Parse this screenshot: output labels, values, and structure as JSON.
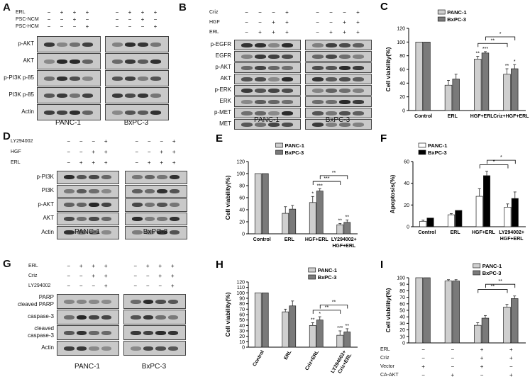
{
  "panels": {
    "A": {
      "label": "A",
      "conditions": [
        {
          "name": "ERL",
          "signs": [
            "−",
            "+",
            "+",
            "+",
            "−",
            "+",
            "+",
            "+"
          ]
        },
        {
          "name": "PSC-NCM",
          "signs": [
            "−",
            "−",
            "+",
            "−",
            "−",
            "−",
            "+",
            "−"
          ]
        },
        {
          "name": "PSC-HCM",
          "signs": [
            "−",
            "−",
            "−",
            "+",
            "−",
            "−",
            "−",
            "+"
          ]
        }
      ],
      "rows": [
        "p-AKT",
        "AKT",
        "p-PI3K p-85",
        "PI3K p-85",
        "Actin"
      ],
      "cells": [
        "PANC-1",
        "BxPC-3"
      ]
    },
    "B": {
      "label": "B",
      "conditions": [
        {
          "name": "Criz",
          "signs": [
            "−",
            "−",
            "−",
            "+",
            "−",
            "−",
            "−",
            "+"
          ]
        },
        {
          "name": "HGF",
          "signs": [
            "−",
            "−",
            "+",
            "+",
            "−",
            "−",
            "+",
            "+"
          ]
        },
        {
          "name": "ERL",
          "signs": [
            "−",
            "+",
            "+",
            "+",
            "−",
            "+",
            "+",
            "+"
          ]
        }
      ],
      "rows": [
        "p-EGFR",
        "EGFR",
        "p-AKT",
        "AKT",
        "p-ERK",
        "ERK",
        "p-MET",
        "MET"
      ],
      "cells": [
        "PANC-1",
        "BxPC-3"
      ]
    },
    "D": {
      "label": "D",
      "conditions": [
        {
          "name": "LY294002",
          "signs": [
            "−",
            "−",
            "−",
            "+",
            "−",
            "−",
            "−",
            "+"
          ]
        },
        {
          "name": "HGF",
          "signs": [
            "−",
            "−",
            "+",
            "+",
            "−",
            "−",
            "+",
            "+"
          ]
        },
        {
          "name": "ERL",
          "signs": [
            "−",
            "+",
            "+",
            "+",
            "−",
            "+",
            "+",
            "+"
          ]
        }
      ],
      "rows": [
        "p-PI3K",
        "PI3K",
        "p-AKT",
        "AKT",
        "Actin"
      ],
      "cells": [
        "PANC-1",
        "BxPC-3"
      ]
    },
    "G": {
      "label": "G",
      "conditions": [
        {
          "name": "ERL",
          "signs": [
            "−",
            "+",
            "+",
            "+",
            "−",
            "+",
            "+",
            "+"
          ]
        },
        {
          "name": "Criz",
          "signs": [
            "−",
            "−",
            "+",
            "+",
            "−",
            "−",
            "+",
            "+"
          ]
        },
        {
          "name": "LY294002",
          "signs": [
            "−",
            "−",
            "−",
            "+",
            "−",
            "−",
            "−",
            "+"
          ]
        }
      ],
      "rows": [
        "PARP\ncleaved PARP",
        "caspase-3",
        "cleaved\ncaspase-3",
        "Actin"
      ],
      "cells": [
        "PANC-1",
        "BxPC-3"
      ]
    },
    "I_conditions": [
      {
        "name": "ERL",
        "signs": [
          "−",
          "−",
          "+",
          "+"
        ]
      },
      {
        "name": "Criz",
        "signs": [
          "−",
          "−",
          "+",
          "+"
        ]
      },
      {
        "name": "Vector",
        "signs": [
          "+",
          "−",
          "+",
          "−"
        ]
      },
      {
        "name": "CA-AKT",
        "signs": [
          "−",
          "+",
          "−",
          "+"
        ]
      }
    ]
  },
  "chart_data": [
    {
      "id": "C",
      "type": "bar",
      "label": "C",
      "categories": [
        "Control",
        "ERL",
        "HGF+ERL",
        "Criz+HGF+ERL"
      ],
      "series": [
        {
          "name": "PANC-1",
          "values": [
            100,
            37,
            75,
            53
          ],
          "errors": [
            0,
            7,
            4,
            8
          ],
          "color": "#cfcfcf"
        },
        {
          "name": "BxPC-3",
          "values": [
            100,
            46,
            84,
            61
          ],
          "errors": [
            0,
            7,
            2,
            6
          ],
          "color": "#7a7a7a"
        }
      ],
      "sig": [
        [
          "",
          "",
          "**",
          "**"
        ],
        [
          "",
          "",
          "***",
          "*"
        ]
      ],
      "brackets": [
        {
          "from": 2,
          "to": 3,
          "text": "**"
        },
        {
          "from": 2,
          "to": 3,
          "text": "*"
        }
      ],
      "ylabel": "Cell viability(%)",
      "ylim": [
        0,
        120
      ],
      "yticks": [
        0,
        20,
        40,
        60,
        80,
        100,
        120
      ],
      "legend": "top"
    },
    {
      "id": "E",
      "type": "bar",
      "label": "E",
      "categories": [
        "Control",
        "ERL",
        "HGF+ERL",
        "LY294002+\nHGF+ERL"
      ],
      "series": [
        {
          "name": "PANC-1",
          "values": [
            100,
            34,
            52,
            15
          ],
          "errors": [
            0,
            11,
            10,
            2
          ],
          "color": "#cfcfcf"
        },
        {
          "name": "BxPC-3",
          "values": [
            100,
            41,
            71,
            19
          ],
          "errors": [
            0,
            6,
            4,
            4
          ],
          "color": "#7a7a7a"
        }
      ],
      "sig": [
        [
          "",
          "",
          "*",
          "**"
        ],
        [
          "",
          "",
          "***",
          "**"
        ]
      ],
      "brackets": [
        {
          "from": 2,
          "to": 3,
          "text": "***"
        },
        {
          "from": 2,
          "to": 3,
          "text": "**"
        }
      ],
      "ylabel": "Cell viability(%)",
      "ylim": [
        0,
        120
      ],
      "yticks": [
        0,
        20,
        40,
        60,
        80,
        100,
        120
      ],
      "legend": "top"
    },
    {
      "id": "F",
      "type": "bar",
      "label": "F",
      "categories": [
        "Control",
        "ERL",
        "HGF+ERL",
        "LY294002+\nHGF+ERL"
      ],
      "series": [
        {
          "name": "PANC-1",
          "values": [
            5,
            11,
            28,
            18
          ],
          "errors": [
            1,
            1,
            7,
            3
          ],
          "color": "#ffffff"
        },
        {
          "name": "BxPC-3",
          "values": [
            8,
            15,
            47,
            26
          ],
          "errors": [
            0,
            0,
            4,
            6
          ],
          "color": "#000000"
        }
      ],
      "sig": [
        [
          "",
          "",
          "",
          ""
        ],
        [
          "",
          "",
          "",
          ""
        ]
      ],
      "brackets": [
        {
          "from": 2,
          "to": 3,
          "text": "*"
        },
        {
          "from": 2,
          "to": 3,
          "text": "*"
        }
      ],
      "ylabel": "Apoptosis(%)",
      "ylim": [
        0,
        60
      ],
      "yticks": [
        0,
        20,
        40,
        60
      ],
      "legend": "top-left"
    },
    {
      "id": "H",
      "type": "bar",
      "label": "H",
      "categories": [
        "Control",
        "ERL",
        "Criz+ERL",
        "LY294002+\nCriz+ERL"
      ],
      "series": [
        {
          "name": "PANC-1",
          "values": [
            100,
            65,
            40,
            22
          ],
          "errors": [
            0,
            5,
            5,
            8
          ],
          "color": "#cfcfcf"
        },
        {
          "name": "BxPC-3",
          "values": [
            100,
            76,
            50,
            28
          ],
          "errors": [
            0,
            9,
            6,
            6
          ],
          "color": "#7a7a7a"
        }
      ],
      "sig": [
        [
          "",
          "",
          "**",
          "***"
        ],
        [
          "",
          "",
          "*",
          "**"
        ]
      ],
      "brackets": [
        {
          "from": 2,
          "to": 3,
          "text": "**"
        },
        {
          "from": 2,
          "to": 3,
          "text": "**"
        }
      ],
      "ylabel": "Cell viability(%)",
      "ylim": [
        0,
        120
      ],
      "yticks": [
        0,
        10,
        20,
        30,
        40,
        50,
        60,
        70,
        80,
        90,
        100,
        110,
        120
      ],
      "legend": "top-right"
    },
    {
      "id": "I",
      "type": "bar",
      "label": "I",
      "categories": [
        "",
        "",
        "",
        ""
      ],
      "series": [
        {
          "name": "PANC-1",
          "values": [
            100,
            95,
            27,
            55
          ],
          "errors": [
            0,
            2,
            4,
            4
          ],
          "color": "#cfcfcf"
        },
        {
          "name": "BxPC-3",
          "values": [
            100,
            95,
            38,
            68
          ],
          "errors": [
            0,
            2,
            4,
            4
          ],
          "color": "#7a7a7a"
        }
      ],
      "sig": [
        [
          "",
          "",
          "",
          ""
        ],
        [
          "",
          "",
          "",
          ""
        ]
      ],
      "brackets": [
        {
          "from": 2,
          "to": 3,
          "text": "**"
        },
        {
          "from": 2,
          "to": 3,
          "text": "**"
        }
      ],
      "ylabel": "Cell viability(%)",
      "ylim": [
        0,
        100
      ],
      "yticks": [
        0,
        10,
        20,
        30,
        40,
        50,
        60,
        70,
        80,
        90,
        100
      ],
      "legend": "top-right"
    }
  ]
}
